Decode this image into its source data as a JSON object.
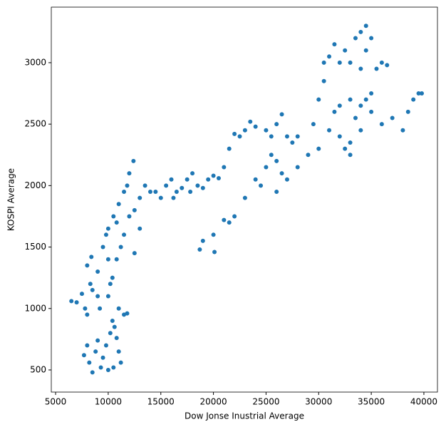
{
  "chart_data": {
    "type": "scatter",
    "x_label": "Dow Jonse Inustrial Average",
    "y_label": "KOSPI Average",
    "color": "#1f77b4",
    "xlim": [
      4590,
      41290
    ],
    "ylim": [
      320,
      3452
    ],
    "xticks": [
      5000,
      10000,
      15000,
      20000,
      25000,
      30000,
      35000,
      40000
    ],
    "yticks": [
      500,
      1000,
      1500,
      2000,
      2500,
      3000
    ],
    "x": [
      7700,
      8000,
      8200,
      8500,
      8800,
      9000,
      9300,
      9500,
      9800,
      10000,
      10200,
      10400,
      10600,
      10800,
      11000,
      11200,
      10500,
      11500,
      11800,
      11000,
      6500,
      7000,
      7500,
      7800,
      8000,
      8300,
      8500,
      9000,
      9200,
      8000,
      8400,
      9000,
      9500,
      10000,
      10500,
      11000,
      11500,
      12000,
      12400,
      11800,
      10800,
      9800,
      10000,
      10400,
      10800,
      11200,
      11500,
      12000,
      12500,
      13000,
      13500,
      14000,
      12500,
      13000,
      10200,
      10000,
      14500,
      15000,
      15500,
      16000,
      16500,
      17000,
      17500,
      18000,
      17800,
      16200,
      18500,
      19000,
      19500,
      20000,
      20500,
      21000,
      21500,
      22000,
      22500,
      23000,
      23500,
      24000,
      25000,
      25500,
      26000,
      26500,
      27000,
      27500,
      28000,
      24000,
      25000,
      25500,
      26000,
      26500,
      27000,
      26000,
      24500,
      28000,
      29000,
      30000,
      23000,
      22000,
      21500,
      20000,
      19000,
      18700,
      20100,
      21000,
      29500,
      30000,
      30500,
      31000,
      31500,
      30500,
      32000,
      32500,
      33000,
      33500,
      34000,
      34500,
      35000,
      34500,
      35500,
      36000,
      36500,
      34000,
      31000,
      32000,
      33000,
      33500,
      34000,
      34500,
      35000,
      33000,
      32500,
      34000,
      35000,
      36000,
      37000,
      38000,
      38500,
      39000,
      39500,
      39800,
      31500,
      32000,
      33000
    ],
    "y": [
      620,
      700,
      560,
      480,
      650,
      740,
      520,
      600,
      700,
      500,
      800,
      900,
      850,
      760,
      650,
      560,
      520,
      950,
      960,
      1000,
      1060,
      1050,
      1120,
      1000,
      950,
      1200,
      1150,
      1100,
      1000,
      1350,
      1420,
      1300,
      1500,
      1650,
      1750,
      1850,
      1950,
      2100,
      2200,
      2000,
      1700,
      1600,
      1100,
      1250,
      1400,
      1500,
      1600,
      1750,
      1800,
      1900,
      2000,
      1950,
      1450,
      1650,
      1200,
      1400,
      1950,
      1900,
      2000,
      2050,
      1950,
      1980,
      2050,
      2100,
      1950,
      1900,
      2000,
      1980,
      2050,
      2080,
      2060,
      2150,
      2300,
      2420,
      2400,
      2450,
      2520,
      2480,
      2450,
      2400,
      2500,
      2580,
      2400,
      2350,
      2400,
      2050,
      2150,
      2250,
      2200,
      2100,
      2050,
      1950,
      2000,
      2150,
      2250,
      2300,
      1900,
      1750,
      1700,
      1600,
      1550,
      1480,
      1460,
      1720,
      2500,
      2700,
      2850,
      3050,
      3150,
      3000,
      3000,
      3100,
      3000,
      3200,
      3250,
      3300,
      3200,
      3100,
      2950,
      3000,
      2980,
      2950,
      2450,
      2400,
      2350,
      2550,
      2650,
      2700,
      2600,
      2250,
      2300,
      2450,
      2750,
      2500,
      2550,
      2450,
      2600,
      2700,
      2750,
      2750,
      2600,
      2650,
      2700
    ]
  }
}
